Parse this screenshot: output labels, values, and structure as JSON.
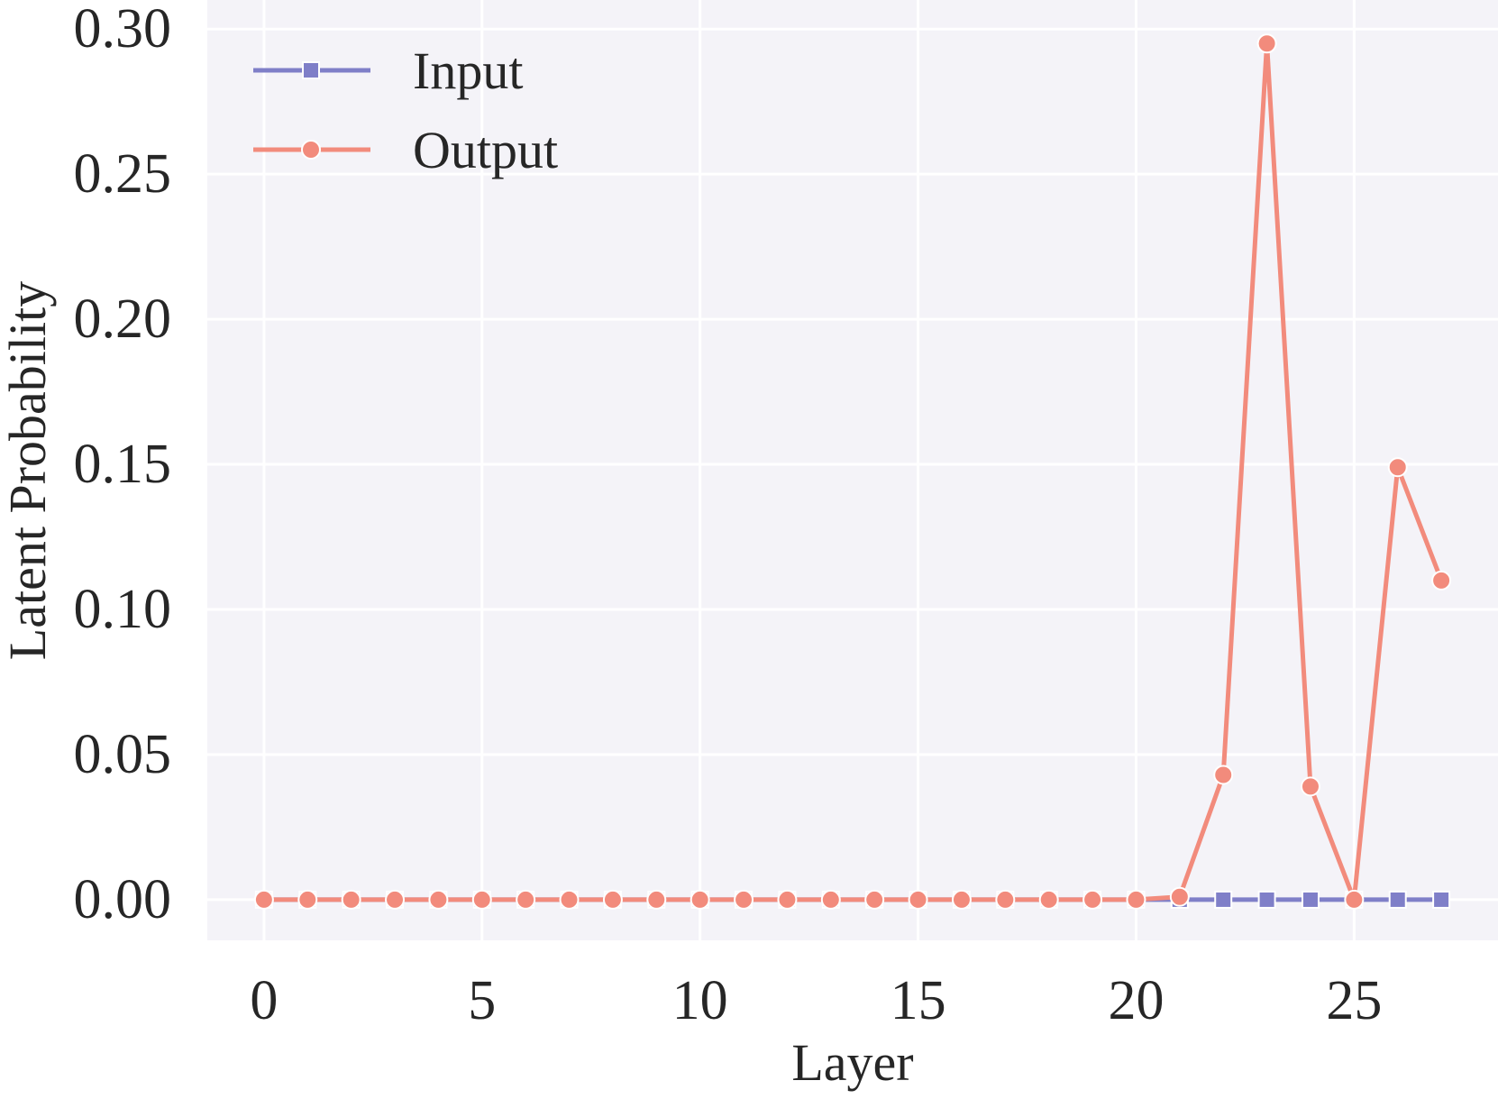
{
  "chart_data": {
    "type": "line",
    "title": "",
    "xlabel": "Layer",
    "ylabel": "Latent Probability",
    "x": [
      0,
      1,
      2,
      3,
      4,
      5,
      6,
      7,
      8,
      9,
      10,
      11,
      12,
      13,
      14,
      15,
      16,
      17,
      18,
      19,
      20,
      21,
      22,
      23,
      24,
      25,
      26,
      27
    ],
    "xlim": [
      -1.3,
      28.3
    ],
    "ylim": [
      -0.014,
      0.31
    ],
    "xticks": [
      0,
      5,
      10,
      15,
      20,
      25
    ],
    "xtick_labels": [
      "0",
      "5",
      "10",
      "15",
      "20",
      "25"
    ],
    "yticks": [
      0.0,
      0.05,
      0.1,
      0.15,
      0.2,
      0.25,
      0.3
    ],
    "ytick_labels": [
      "0.00",
      "0.05",
      "0.10",
      "0.15",
      "0.20",
      "0.25",
      "0.30"
    ],
    "grid": true,
    "legend_position": "top-left",
    "background_color": "#f4f3f8",
    "grid_color": "#ffffff",
    "series": [
      {
        "name": "Input",
        "color": "#7f7fc8",
        "marker": "square",
        "values": [
          0,
          0,
          0,
          0,
          0,
          0,
          0,
          0,
          0,
          0,
          0,
          0,
          0,
          0,
          0,
          0,
          0,
          0,
          0,
          0,
          0,
          0,
          0,
          0,
          0,
          0,
          0,
          0
        ]
      },
      {
        "name": "Output",
        "color": "#f28b7c",
        "marker": "circle",
        "values": [
          0,
          0,
          0,
          0,
          0,
          0,
          0,
          0,
          0,
          0,
          0,
          0,
          0,
          0,
          0,
          0,
          0,
          0,
          0,
          0,
          0,
          0.001,
          0.043,
          0.295,
          0.039,
          0.0,
          0.149,
          0.11
        ]
      }
    ]
  }
}
